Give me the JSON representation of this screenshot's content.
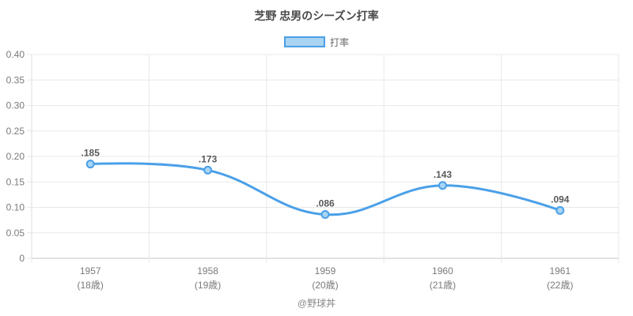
{
  "header": {
    "title": "芝野 忠男のシーズン打率"
  },
  "legend": {
    "label": "打率"
  },
  "footer": {
    "credit": "@野球丼"
  },
  "colors": {
    "line": "#4aa0e8",
    "point_fill": "#a9d4f2",
    "point_stroke": "#4aa0e8",
    "grid": "#e8e8e8",
    "axis": "#c4c4c4",
    "axis_left": "#dcdcdc",
    "tick_text": "#7a7a7a",
    "value_label": "#58595b"
  },
  "chart_data": {
    "type": "line",
    "title": "芝野 忠男のシーズン打率",
    "categories": [
      "1957",
      "1958",
      "1959",
      "1960",
      "1961"
    ],
    "category_sublabels": [
      "(18歳)",
      "(19歳)",
      "(20歳)",
      "(21歳)",
      "(22歳)"
    ],
    "series": [
      {
        "name": "打率",
        "values": [
          0.185,
          0.173,
          0.086,
          0.143,
          0.094
        ]
      }
    ],
    "point_labels": [
      ".185",
      ".173",
      ".086",
      ".143",
      ".094"
    ],
    "y_ticks": [
      0,
      0.05,
      0.1,
      0.15,
      0.2,
      0.25,
      0.3,
      0.35,
      0.4
    ],
    "y_tick_labels": [
      "0",
      "0.05",
      "0.10",
      "0.15",
      "0.20",
      "0.25",
      "0.30",
      "0.35",
      "0.40"
    ],
    "ylim": [
      0,
      0.4
    ],
    "grid": true,
    "legend_position": "top",
    "line_tension": 0.4
  }
}
